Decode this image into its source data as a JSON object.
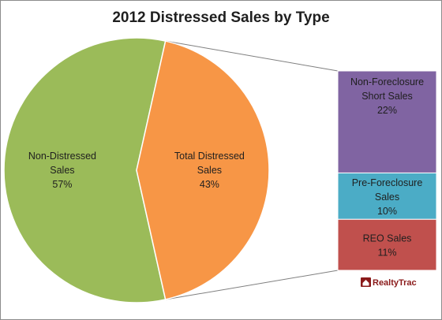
{
  "chart_data": {
    "type": "pie",
    "title": "2012 Distressed Sales by Type",
    "pie": {
      "slices": [
        {
          "label_lines": [
            "Non-Distressed",
            "Sales"
          ],
          "percent_label": "57%",
          "value": 57,
          "color": "#9bbb59"
        },
        {
          "label_lines": [
            "Total Distressed",
            "Sales"
          ],
          "percent_label": "43%",
          "value": 43,
          "color": "#f79646"
        }
      ]
    },
    "breakdown": {
      "type": "stacked-bar",
      "parent": "Total Distressed Sales",
      "segments": [
        {
          "label_lines": [
            "Non-Foreclosure",
            "Short Sales"
          ],
          "percent_label": "22%",
          "value": 22,
          "color": "#8064a2"
        },
        {
          "label_lines": [
            "Pre-Foreclosure",
            "Sales"
          ],
          "percent_label": "10%",
          "value": 10,
          "color": "#4bacc6"
        },
        {
          "label_lines": [
            "REO Sales"
          ],
          "percent_label": "11%",
          "value": 11,
          "color": "#c0504d"
        }
      ]
    }
  },
  "brand": {
    "logo_text": "RealtyTrac",
    "logo_color": "#8a1a1a"
  }
}
